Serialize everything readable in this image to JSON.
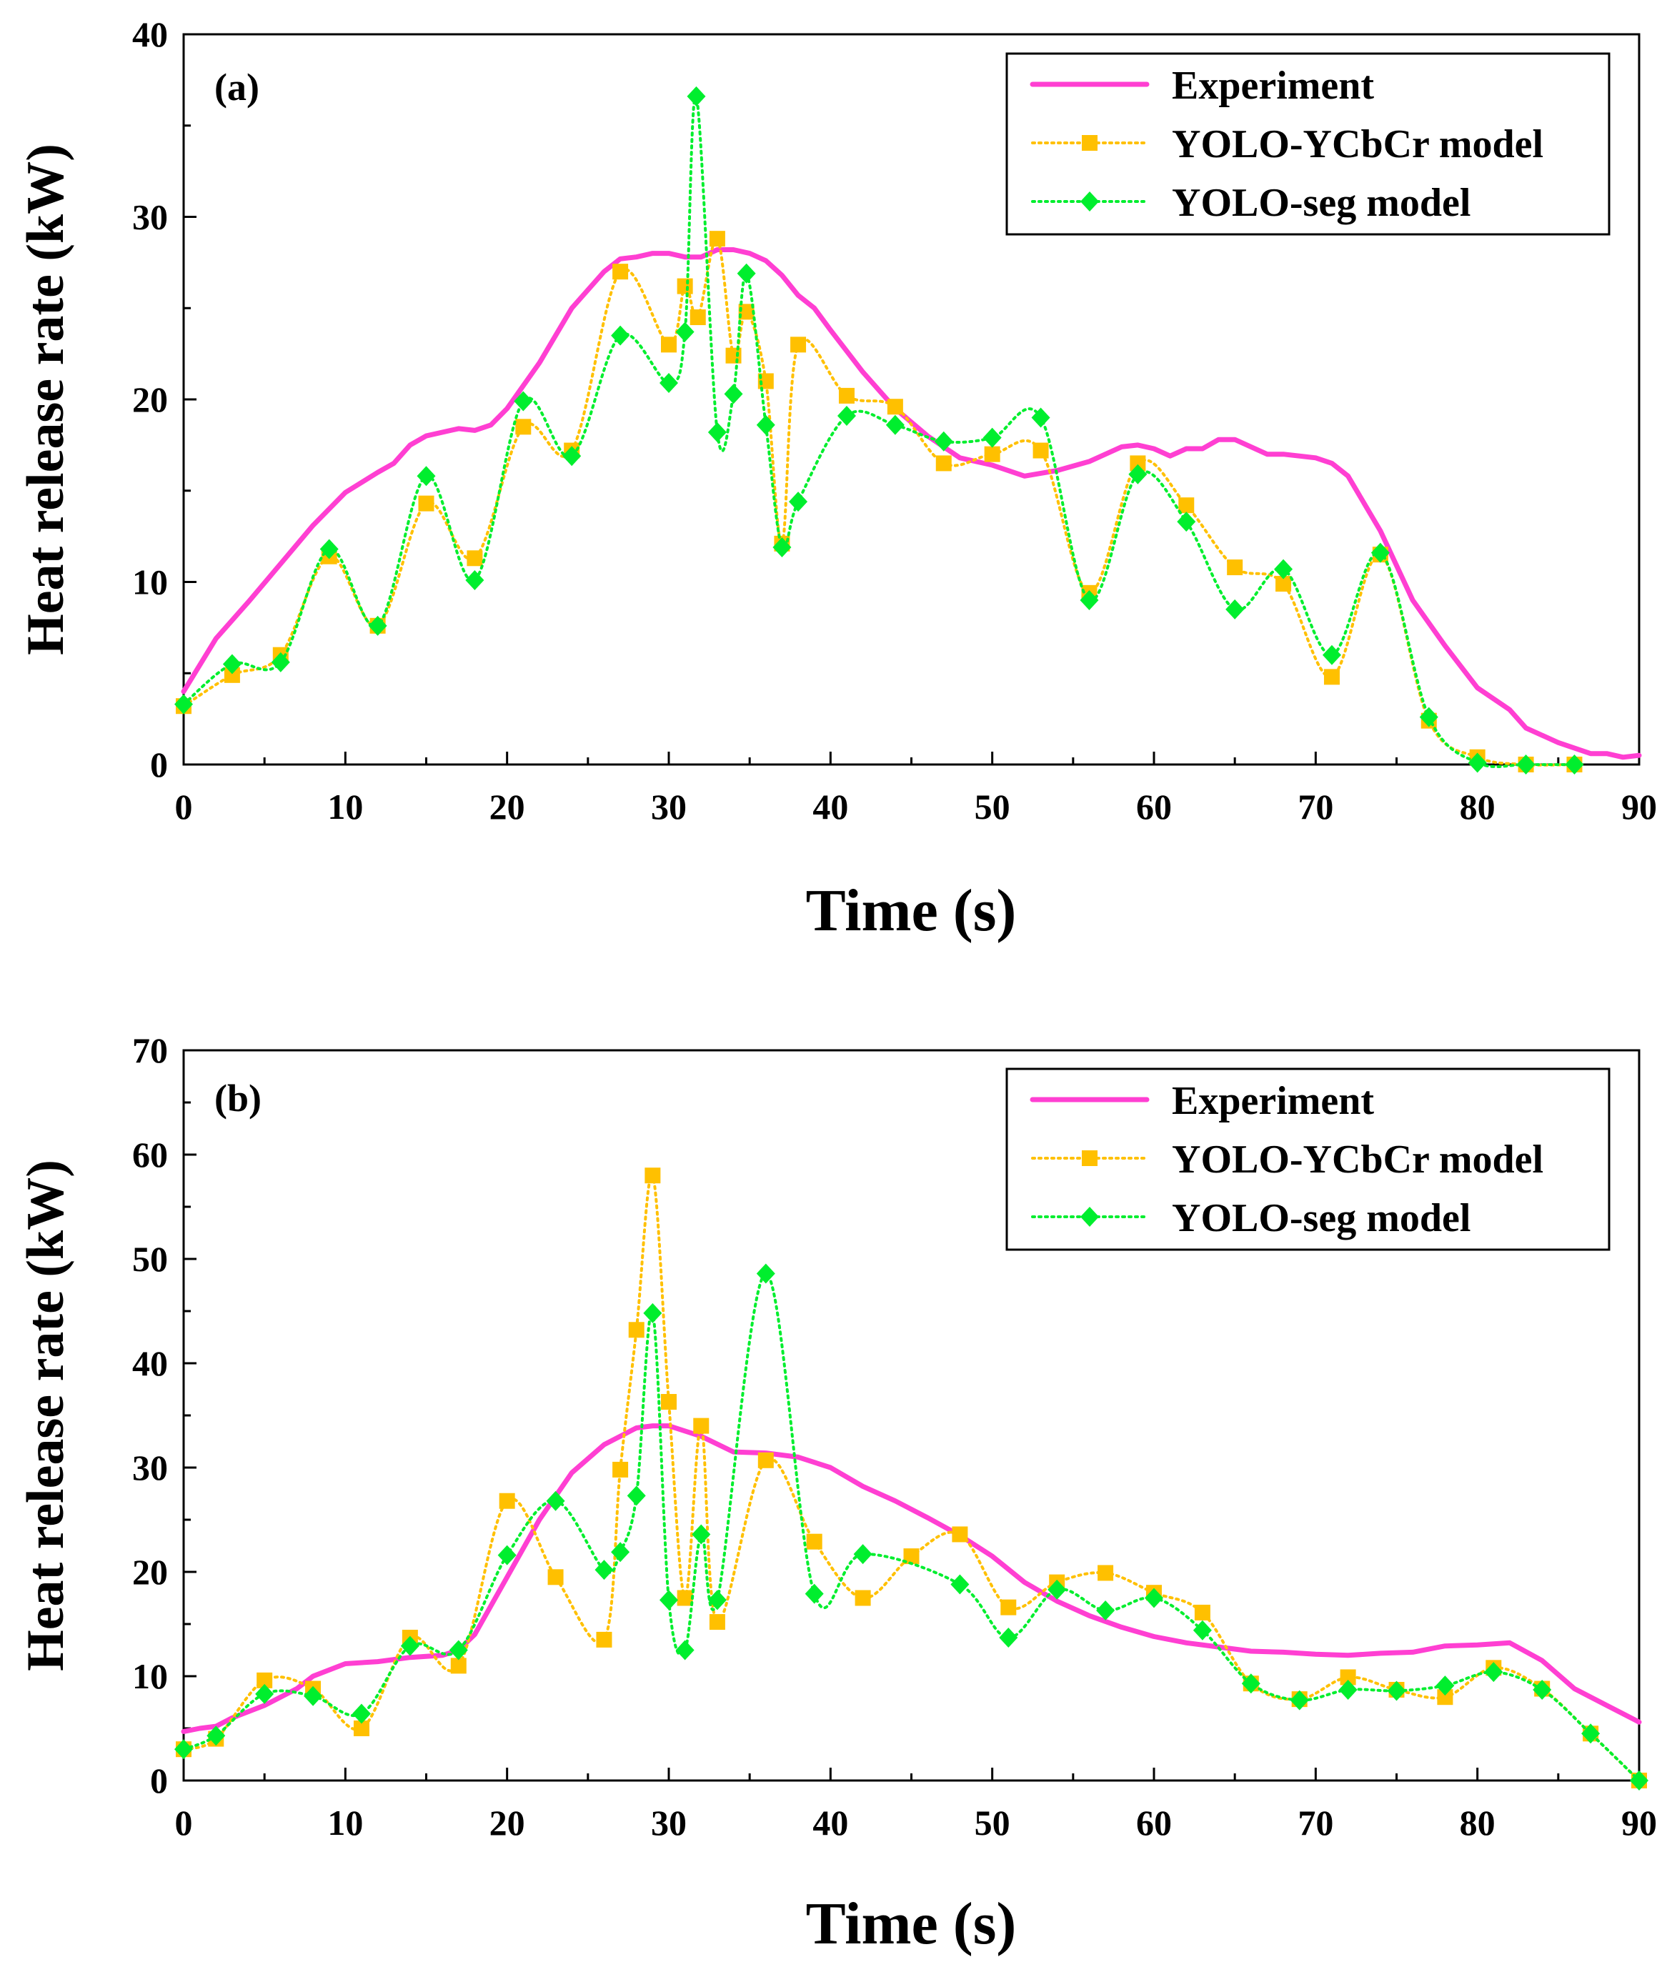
{
  "chart_data": [
    {
      "type": "line",
      "panel_label": "(a)",
      "xlabel": "Time (s)",
      "ylabel": "Heat release rate (kW)",
      "xlim": [
        0,
        90
      ],
      "ylim": [
        0,
        40
      ],
      "xticks": [
        0,
        10,
        20,
        30,
        40,
        50,
        60,
        70,
        80,
        90
      ],
      "yticks": [
        0,
        10,
        20,
        30,
        40
      ],
      "grid": false,
      "legend_position": "top-right",
      "series": [
        {
          "name": "Experiment",
          "style": "solid line",
          "color": "#ff3fd2",
          "x": [
            0,
            2,
            4,
            6,
            8,
            10,
            12,
            13,
            14,
            15,
            17,
            18,
            19,
            20,
            22,
            24,
            26,
            27,
            28,
            29,
            30,
            31,
            32,
            33,
            34,
            35,
            36,
            37,
            38,
            39,
            40,
            42,
            44,
            46,
            48,
            50,
            52,
            54,
            56,
            58,
            59,
            60,
            61,
            62,
            63,
            64,
            65,
            66,
            67,
            68,
            70,
            71,
            72,
            74,
            76,
            78,
            80,
            82,
            83,
            85,
            87,
            88,
            89,
            90
          ],
          "values": [
            4.0,
            6.9,
            8.9,
            11.0,
            13.1,
            14.9,
            16.0,
            16.5,
            17.5,
            18.0,
            18.4,
            18.3,
            18.6,
            19.5,
            22.0,
            25.0,
            27.0,
            27.7,
            27.8,
            28.0,
            28.0,
            27.8,
            27.8,
            28.2,
            28.2,
            28.0,
            27.6,
            26.8,
            25.7,
            25.0,
            23.8,
            21.5,
            19.5,
            18.0,
            16.8,
            16.4,
            15.8,
            16.1,
            16.6,
            17.4,
            17.5,
            17.3,
            16.9,
            17.3,
            17.3,
            17.8,
            17.8,
            17.4,
            17.0,
            17.0,
            16.8,
            16.5,
            15.8,
            12.8,
            9.0,
            6.5,
            4.2,
            3.0,
            2.0,
            1.2,
            0.6,
            0.6,
            0.4,
            0.5
          ]
        },
        {
          "name": "YOLO-YCbCr model",
          "style": "dotted line with square markers",
          "color": "#ffc000",
          "x": [
            0,
            3,
            6,
            9,
            12,
            15,
            18,
            21,
            24,
            27,
            30,
            31,
            31.8,
            33,
            34,
            34.8,
            36,
            37,
            38,
            41,
            44,
            47,
            50,
            53,
            56,
            59,
            62,
            65,
            68,
            71,
            74,
            77,
            80,
            83,
            86
          ],
          "values": [
            3.2,
            4.9,
            6.0,
            11.4,
            7.6,
            14.3,
            11.3,
            18.5,
            17.2,
            27.0,
            23.0,
            26.2,
            24.5,
            28.8,
            22.4,
            24.8,
            21.0,
            12.1,
            23.0,
            20.2,
            19.6,
            16.5,
            17.0,
            17.2,
            9.4,
            16.5,
            14.2,
            10.8,
            9.9,
            4.8,
            11.5,
            2.4,
            0.4,
            0.0,
            0.0
          ]
        },
        {
          "name": "YOLO-seg model",
          "style": "dotted line with diamond markers",
          "color": "#00ee2e",
          "x": [
            0,
            3,
            6,
            9,
            12,
            15,
            18,
            21,
            24,
            27,
            30,
            31,
            31.7,
            33,
            34,
            34.8,
            36,
            37,
            38,
            41,
            44,
            47,
            50,
            53,
            56,
            59,
            62,
            65,
            68,
            71,
            74,
            77,
            80,
            83,
            86
          ],
          "values": [
            3.3,
            5.5,
            5.6,
            11.8,
            7.6,
            15.8,
            10.1,
            19.9,
            16.9,
            23.5,
            20.9,
            23.7,
            36.6,
            18.2,
            20.3,
            26.9,
            18.6,
            11.9,
            14.4,
            19.1,
            18.6,
            17.7,
            17.9,
            19.0,
            9.0,
            15.9,
            13.3,
            8.5,
            10.7,
            6.0,
            11.6,
            2.6,
            0.1,
            0.0,
            0.0
          ]
        }
      ]
    },
    {
      "type": "line",
      "panel_label": "(b)",
      "xlabel": "Time (s)",
      "ylabel": "Heat release rate (kW)",
      "xlim": [
        0,
        90
      ],
      "ylim": [
        0,
        70
      ],
      "xticks": [
        0,
        10,
        20,
        30,
        40,
        50,
        60,
        70,
        80,
        90
      ],
      "yticks": [
        0,
        10,
        20,
        30,
        40,
        50,
        60,
        70
      ],
      "grid": false,
      "legend_position": "top-right",
      "series": [
        {
          "name": "Experiment",
          "style": "solid line",
          "color": "#ff3fd2",
          "x": [
            0,
            1,
            2,
            3,
            5,
            7,
            8,
            10,
            12,
            14,
            16,
            17,
            18,
            20,
            22,
            24,
            26,
            28,
            29,
            30,
            32,
            34,
            36,
            38,
            40,
            42,
            44,
            46,
            48,
            50,
            52,
            54,
            56,
            58,
            60,
            62,
            64,
            66,
            68,
            70,
            72,
            74,
            76,
            78,
            80,
            82,
            84,
            86,
            88,
            90
          ],
          "values": [
            4.7,
            5.0,
            5.2,
            6.0,
            7.2,
            8.8,
            10.0,
            11.2,
            11.4,
            11.8,
            12.0,
            12.5,
            14.0,
            19.5,
            25.0,
            29.5,
            32.2,
            33.8,
            34.0,
            34.0,
            33.0,
            31.5,
            31.4,
            31.0,
            30.0,
            28.2,
            26.8,
            25.2,
            23.5,
            21.5,
            19.0,
            17.2,
            15.8,
            14.7,
            13.8,
            13.2,
            12.8,
            12.4,
            12.3,
            12.1,
            12.0,
            12.2,
            12.3,
            12.9,
            13.0,
            13.2,
            11.5,
            8.8,
            7.2,
            5.6
          ]
        },
        {
          "name": "YOLO-YCbCr model",
          "style": "dotted line with square markers",
          "color": "#ffc000",
          "x": [
            0,
            2,
            5,
            8,
            11,
            14,
            17,
            20,
            23,
            26,
            27,
            28,
            29,
            30,
            31,
            32,
            33,
            36,
            39,
            42,
            45,
            48,
            51,
            54,
            57,
            60,
            63,
            66,
            69,
            72,
            75,
            78,
            81,
            84,
            87,
            90
          ],
          "values": [
            3.0,
            4.0,
            9.6,
            8.8,
            5.0,
            13.7,
            11.0,
            26.8,
            19.5,
            13.5,
            29.8,
            43.2,
            58.0,
            36.3,
            17.5,
            34.0,
            15.2,
            30.7,
            22.9,
            17.5,
            21.5,
            23.6,
            16.6,
            19.0,
            19.9,
            18.0,
            16.1,
            9.3,
            7.8,
            9.9,
            8.7,
            8.0,
            10.8,
            8.8,
            4.5,
            0.0
          ]
        },
        {
          "name": "YOLO-seg model",
          "style": "dotted line with diamond markers",
          "color": "#00ee2e",
          "x": [
            0,
            2,
            5,
            8,
            11,
            14,
            17,
            20,
            23,
            26,
            27,
            28,
            29,
            30,
            31,
            32,
            33,
            36,
            39,
            42,
            48,
            51,
            54,
            57,
            60,
            63,
            66,
            69,
            72,
            75,
            78,
            81,
            84,
            87,
            90
          ],
          "values": [
            3.0,
            4.3,
            8.3,
            8.1,
            6.4,
            12.9,
            12.5,
            21.6,
            26.8,
            20.2,
            21.9,
            27.3,
            44.8,
            17.3,
            12.5,
            23.6,
            17.3,
            48.6,
            17.9,
            21.7,
            18.8,
            13.7,
            18.3,
            16.3,
            17.5,
            14.4,
            9.3,
            7.7,
            8.7,
            8.6,
            9.1,
            10.4,
            8.7,
            4.5,
            0.0
          ]
        }
      ]
    }
  ]
}
